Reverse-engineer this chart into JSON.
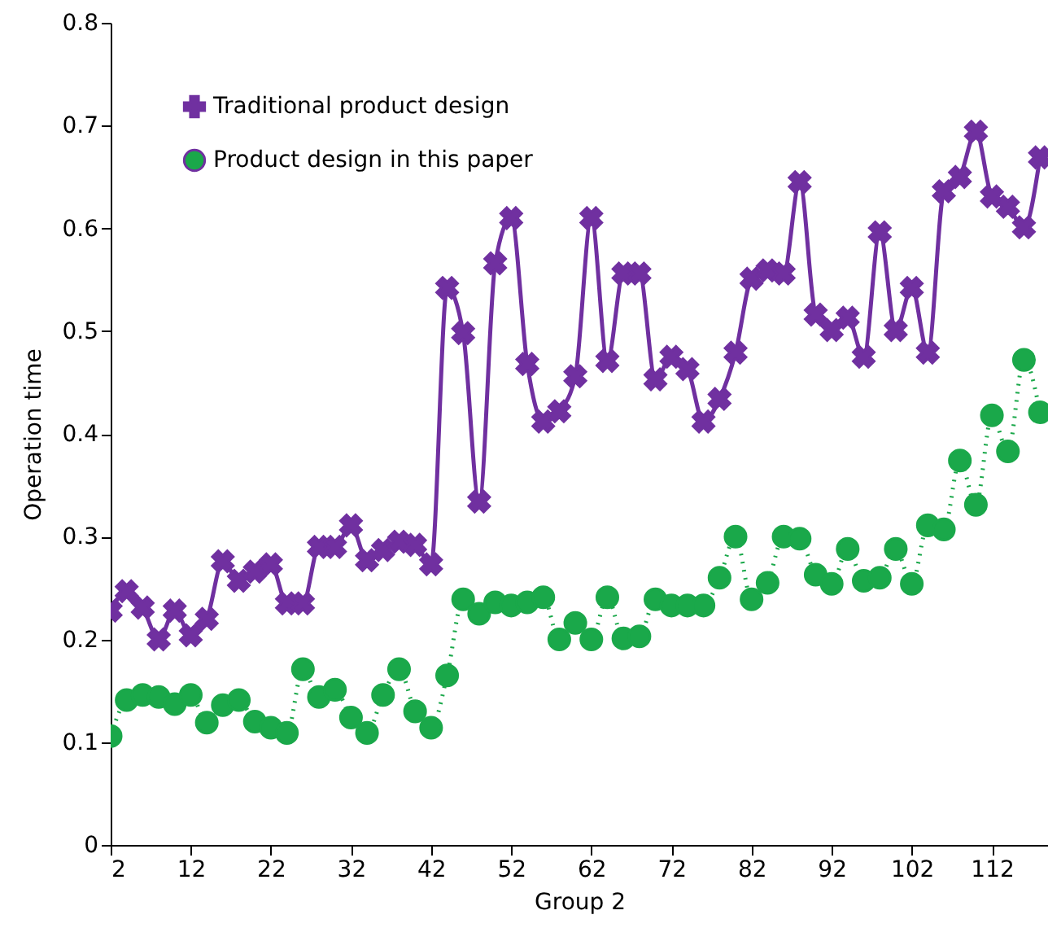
{
  "chart_data": {
    "type": "line",
    "xlabel": "Group 2",
    "ylabel": "Operation time",
    "x": [
      2,
      4,
      6,
      8,
      10,
      12,
      14,
      16,
      18,
      20,
      22,
      24,
      26,
      28,
      30,
      32,
      34,
      36,
      38,
      40,
      42,
      44,
      46,
      48,
      50,
      52,
      54,
      56,
      58,
      60,
      62,
      64,
      66,
      68,
      70,
      72,
      74,
      76,
      78,
      80,
      82,
      84,
      86,
      88,
      90,
      92,
      94,
      96,
      98,
      100,
      102,
      104,
      106,
      108,
      110,
      112,
      114,
      116,
      118
    ],
    "xlim": [
      2,
      119
    ],
    "xticks": [
      2,
      12,
      22,
      32,
      42,
      52,
      62,
      72,
      82,
      92,
      102,
      112
    ],
    "ylim": [
      0,
      0.8
    ],
    "yticks": [
      0,
      0.1,
      0.2,
      0.3,
      0.4,
      0.5,
      0.6,
      0.7,
      0.8
    ],
    "grid": false,
    "legend": "top left",
    "series": [
      {
        "name": "Traditional product design",
        "color": "#7030a0",
        "marker": "cross",
        "line_style": "solid",
        "values": [
          0.228,
          0.247,
          0.231,
          0.2,
          0.228,
          0.204,
          0.22,
          0.276,
          0.257,
          0.266,
          0.273,
          0.235,
          0.235,
          0.29,
          0.29,
          0.311,
          0.277,
          0.287,
          0.295,
          0.292,
          0.273,
          0.542,
          0.498,
          0.334,
          0.566,
          0.61,
          0.468,
          0.412,
          0.422,
          0.456,
          0.61,
          0.471,
          0.556,
          0.556,
          0.453,
          0.475,
          0.463,
          0.412,
          0.434,
          0.479,
          0.551,
          0.559,
          0.556,
          0.645,
          0.516,
          0.501,
          0.513,
          0.475,
          0.596,
          0.501,
          0.542,
          0.479,
          0.636,
          0.65,
          0.694,
          0.631,
          0.621,
          0.601,
          0.669
        ]
      },
      {
        "name": "Product design in this paper",
        "color": "#1aa84a",
        "marker": "circle",
        "line_style": "dotted",
        "values": [
          0.106,
          0.141,
          0.146,
          0.144,
          0.137,
          0.146,
          0.119,
          0.136,
          0.141,
          0.12,
          0.114,
          0.109,
          0.171,
          0.144,
          0.151,
          0.124,
          0.109,
          0.146,
          0.171,
          0.13,
          0.114,
          0.165,
          0.239,
          0.225,
          0.236,
          0.233,
          0.236,
          0.241,
          0.2,
          0.216,
          0.2,
          0.241,
          0.201,
          0.203,
          0.239,
          0.233,
          0.233,
          0.233,
          0.26,
          0.3,
          0.239,
          0.255,
          0.3,
          0.298,
          0.263,
          0.254,
          0.288,
          0.257,
          0.26,
          0.288,
          0.254,
          0.311,
          0.307,
          0.374,
          0.331,
          0.418,
          0.383,
          0.472,
          0.421
        ]
      }
    ]
  }
}
